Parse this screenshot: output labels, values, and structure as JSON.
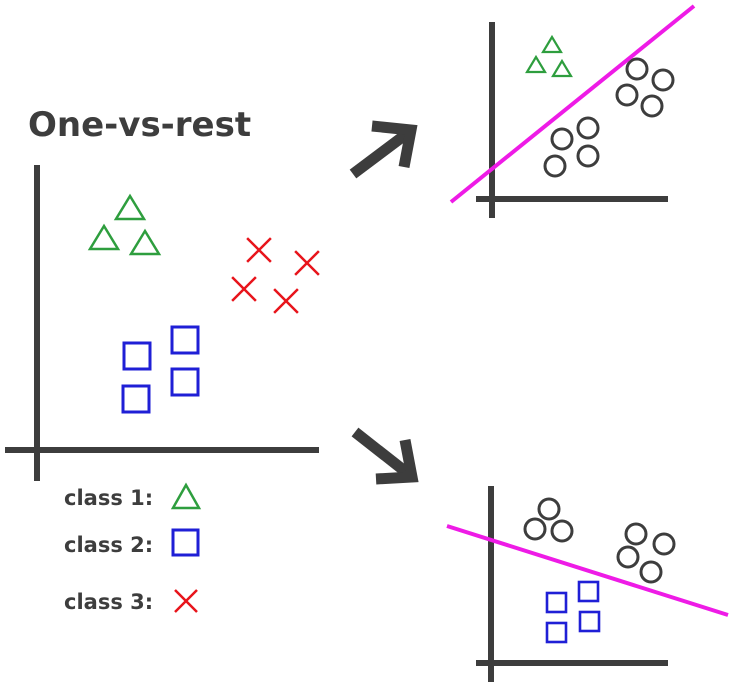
{
  "title": "One-vs-rest",
  "legend": [
    {
      "label": "class 1:",
      "marker": "triangle",
      "color": "#2e9e3e"
    },
    {
      "label": "class 2:",
      "marker": "square",
      "color": "#1f1fd6"
    },
    {
      "label": "class 3:",
      "marker": "cross",
      "color": "#e8141b"
    }
  ],
  "colors": {
    "axis": "#3d3d3d",
    "rest": "#3d3d3d",
    "boundary": "#ee1be6",
    "arrow": "#3d3d3d"
  }
}
